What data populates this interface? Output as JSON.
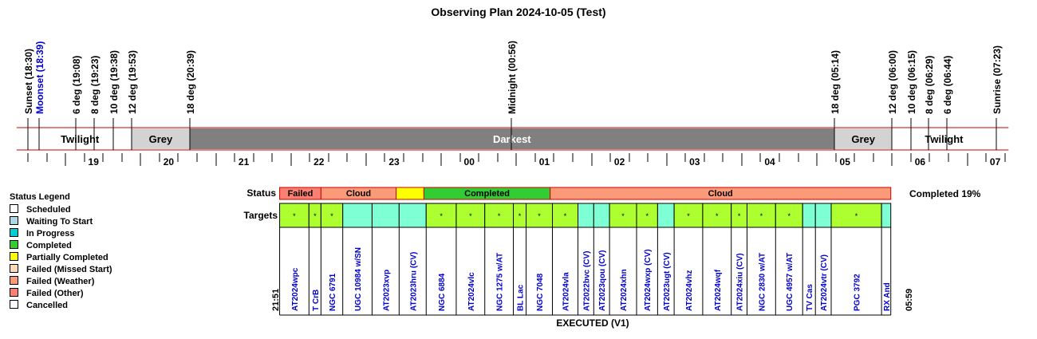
{
  "title": "Observing Plan 2024-10-05 (Test)",
  "time_axis": {
    "hours": [
      {
        "label": "19",
        "t": 19.0
      },
      {
        "label": "20",
        "t": 20.0
      },
      {
        "label": "21",
        "t": 21.0
      },
      {
        "label": "22",
        "t": 22.0
      },
      {
        "label": "23",
        "t": 23.0
      },
      {
        "label": "00",
        "t": 24.0
      },
      {
        "label": "01",
        "t": 25.0
      },
      {
        "label": "02",
        "t": 26.0
      },
      {
        "label": "03",
        "t": 27.0
      },
      {
        "label": "04",
        "t": 28.0
      },
      {
        "label": "05",
        "t": 29.0
      },
      {
        "label": "06",
        "t": 30.0
      },
      {
        "label": "07",
        "t": 31.0
      }
    ],
    "range_hours": [
      18.35,
      31.55
    ]
  },
  "events": [
    {
      "label": "Sunset (18:30)",
      "t": 18.5,
      "color": "#000000"
    },
    {
      "label": "Moonset (18:39)",
      "t": 18.65,
      "color": "#0000cc"
    },
    {
      "label": "6 deg (19:08)",
      "t": 19.1333,
      "color": "#000000"
    },
    {
      "label": "8 deg (19:23)",
      "t": 19.3833,
      "color": "#000000"
    },
    {
      "label": "10 deg (19:38)",
      "t": 19.6333,
      "color": "#000000"
    },
    {
      "label": "12 deg (19:53)",
      "t": 19.8833,
      "color": "#000000"
    },
    {
      "label": "18 deg (20:39)",
      "t": 20.65,
      "color": "#000000"
    },
    {
      "label": "Midnight (00:56)",
      "t": 24.9333,
      "color": "#000000"
    },
    {
      "label": "18 deg (05:14)",
      "t": 29.2333,
      "color": "#000000"
    },
    {
      "label": "12 deg (06:00)",
      "t": 30.0,
      "color": "#000000"
    },
    {
      "label": "10 deg (06:15)",
      "t": 30.25,
      "color": "#000000"
    },
    {
      "label": "8 deg (06:29)",
      "t": 30.4833,
      "color": "#000000"
    },
    {
      "label": "6 deg (06:44)",
      "t": 30.7333,
      "color": "#000000"
    },
    {
      "label": "Sunrise (07:23)",
      "t": 31.3833,
      "color": "#000000"
    }
  ],
  "sky_bands": [
    {
      "label": "Twilight",
      "start": 18.5,
      "end": 19.8833,
      "color": "#ffffff",
      "text_color": "#000000"
    },
    {
      "label": "Grey",
      "start": 19.8833,
      "end": 20.65,
      "color": "#d3d3d3",
      "text_color": "#000000"
    },
    {
      "label": "Darkest",
      "start": 20.65,
      "end": 29.2333,
      "color": "#808080",
      "text_color": "#ffffff"
    },
    {
      "label": "Grey",
      "start": 29.2333,
      "end": 30.0,
      "color": "#d3d3d3",
      "text_color": "#000000"
    },
    {
      "label": "Twilight",
      "start": 30.0,
      "end": 31.3833,
      "color": "#ffffff",
      "text_color": "#000000"
    }
  ],
  "legend": {
    "title": "Status Legend",
    "items": [
      {
        "label": "Scheduled",
        "color": "#ffffff"
      },
      {
        "label": "Waiting To Start",
        "color": "#add8e6"
      },
      {
        "label": "In Progress",
        "color": "#00ced1"
      },
      {
        "label": "Completed",
        "color": "#32cd32"
      },
      {
        "label": "Partially Completed",
        "color": "#ffff00"
      },
      {
        "label": "Failed (Missed Start)",
        "color": "#ffdab9"
      },
      {
        "label": "Failed (Weather)",
        "color": "#fa9a78"
      },
      {
        "label": "Failed (Other)",
        "color": "#fa8072"
      },
      {
        "label": "Cancelled",
        "color": "#ffffff"
      }
    ]
  },
  "schedule": {
    "status_label": "Status",
    "targets_label": "Targets",
    "start_time": "21:51",
    "end_time": "05:59",
    "start_t": 21.85,
    "end_t": 29.9833,
    "completed_text": "Completed 19%",
    "footer": "EXECUTED (V1)",
    "status_segments": [
      {
        "label": "Failed",
        "start": 21.85,
        "end": 22.4,
        "color": "#fa8072"
      },
      {
        "label": "Cloud",
        "start": 22.4,
        "end": 23.4,
        "color": "#fa9a78"
      },
      {
        "label": "",
        "start": 23.4,
        "end": 23.77,
        "color": "#ffff00"
      },
      {
        "label": "Completed",
        "start": 23.77,
        "end": 25.45,
        "color": "#32cd32"
      },
      {
        "label": "Cloud",
        "start": 25.45,
        "end": 29.9833,
        "color": "#fa9a78"
      }
    ],
    "targets": [
      {
        "name": "AT2024wpc",
        "start": 21.85,
        "end": 22.24,
        "color": "#adff2f",
        "mark": "*"
      },
      {
        "name": "T CrB",
        "start": 22.24,
        "end": 22.4,
        "color": "#adff2f",
        "mark": "*"
      },
      {
        "name": "NGC 6791",
        "start": 22.4,
        "end": 22.69,
        "color": "#adff2f",
        "mark": "*"
      },
      {
        "name": "UGC 10984 w/SN",
        "start": 22.69,
        "end": 23.08,
        "color": "#7fffd4",
        "mark": ""
      },
      {
        "name": "AT2023xvp",
        "start": 23.08,
        "end": 23.44,
        "color": "#7fffd4",
        "mark": ""
      },
      {
        "name": "AT2023hru (CV)",
        "start": 23.44,
        "end": 23.8,
        "color": "#7fffd4",
        "mark": ""
      },
      {
        "name": "NGC 6884",
        "start": 23.8,
        "end": 24.2,
        "color": "#adff2f",
        "mark": "*"
      },
      {
        "name": "AT2024vlc",
        "start": 24.2,
        "end": 24.58,
        "color": "#adff2f",
        "mark": "*"
      },
      {
        "name": "NGC 1275 w/AT",
        "start": 24.58,
        "end": 24.96,
        "color": "#adff2f",
        "mark": "*"
      },
      {
        "name": "BL Lac",
        "start": 24.96,
        "end": 25.13,
        "color": "#adff2f",
        "mark": "*"
      },
      {
        "name": "NGC 7048",
        "start": 25.13,
        "end": 25.48,
        "color": "#adff2f",
        "mark": "*"
      },
      {
        "name": "AT2024vla",
        "start": 25.48,
        "end": 25.82,
        "color": "#adff2f",
        "mark": "*"
      },
      {
        "name": "AT2022bvc (CV)",
        "start": 25.82,
        "end": 26.03,
        "color": "#7fffd4",
        "mark": ""
      },
      {
        "name": "AT2023qou (CV)",
        "start": 26.03,
        "end": 26.24,
        "color": "#7fffd4",
        "mark": ""
      },
      {
        "name": "AT2024xhn",
        "start": 26.24,
        "end": 26.6,
        "color": "#adff2f",
        "mark": "*"
      },
      {
        "name": "AT2024wxp (CV)",
        "start": 26.6,
        "end": 26.88,
        "color": "#adff2f",
        "mark": "*"
      },
      {
        "name": "AT2023ugt (CV)",
        "start": 26.88,
        "end": 27.1,
        "color": "#7fffd4",
        "mark": ""
      },
      {
        "name": "AT2024vhz",
        "start": 27.1,
        "end": 27.48,
        "color": "#adff2f",
        "mark": "*"
      },
      {
        "name": "AT2024wqf",
        "start": 27.48,
        "end": 27.86,
        "color": "#adff2f",
        "mark": "*"
      },
      {
        "name": "AT2024xiu (CV)",
        "start": 27.86,
        "end": 28.07,
        "color": "#adff2f",
        "mark": "*"
      },
      {
        "name": "NGC 2830 w/AT",
        "start": 28.07,
        "end": 28.45,
        "color": "#adff2f",
        "mark": "*"
      },
      {
        "name": "UGC 4957 w/AT",
        "start": 28.45,
        "end": 28.81,
        "color": "#adff2f",
        "mark": "*"
      },
      {
        "name": "TV Cas",
        "start": 28.81,
        "end": 28.98,
        "color": "#7fffd4",
        "mark": ""
      },
      {
        "name": "AT2024vtr (CV)",
        "start": 28.98,
        "end": 29.19,
        "color": "#7fffd4",
        "mark": ""
      },
      {
        "name": "PGC 3792",
        "start": 29.19,
        "end": 29.86,
        "color": "#adff2f",
        "mark": "*"
      },
      {
        "name": "RX And",
        "start": 29.86,
        "end": 29.9833,
        "color": "#7fffd4",
        "mark": ""
      }
    ]
  },
  "chart_data": {
    "type": "timeline",
    "title": "Observing Plan 2024-10-05 (Test)",
    "x_range_hours": [
      18.35,
      31.55
    ],
    "events": [
      "Sunset (18:30)",
      "Moonset (18:39)",
      "6 deg (19:08)",
      "8 deg (19:23)",
      "10 deg (19:38)",
      "12 deg (19:53)",
      "18 deg (20:39)",
      "Midnight (00:56)",
      "18 deg (05:14)",
      "12 deg (06:00)",
      "10 deg (06:15)",
      "8 deg (06:29)",
      "6 deg (06:44)",
      "Sunrise (07:23)"
    ],
    "completed_percent": 19
  }
}
